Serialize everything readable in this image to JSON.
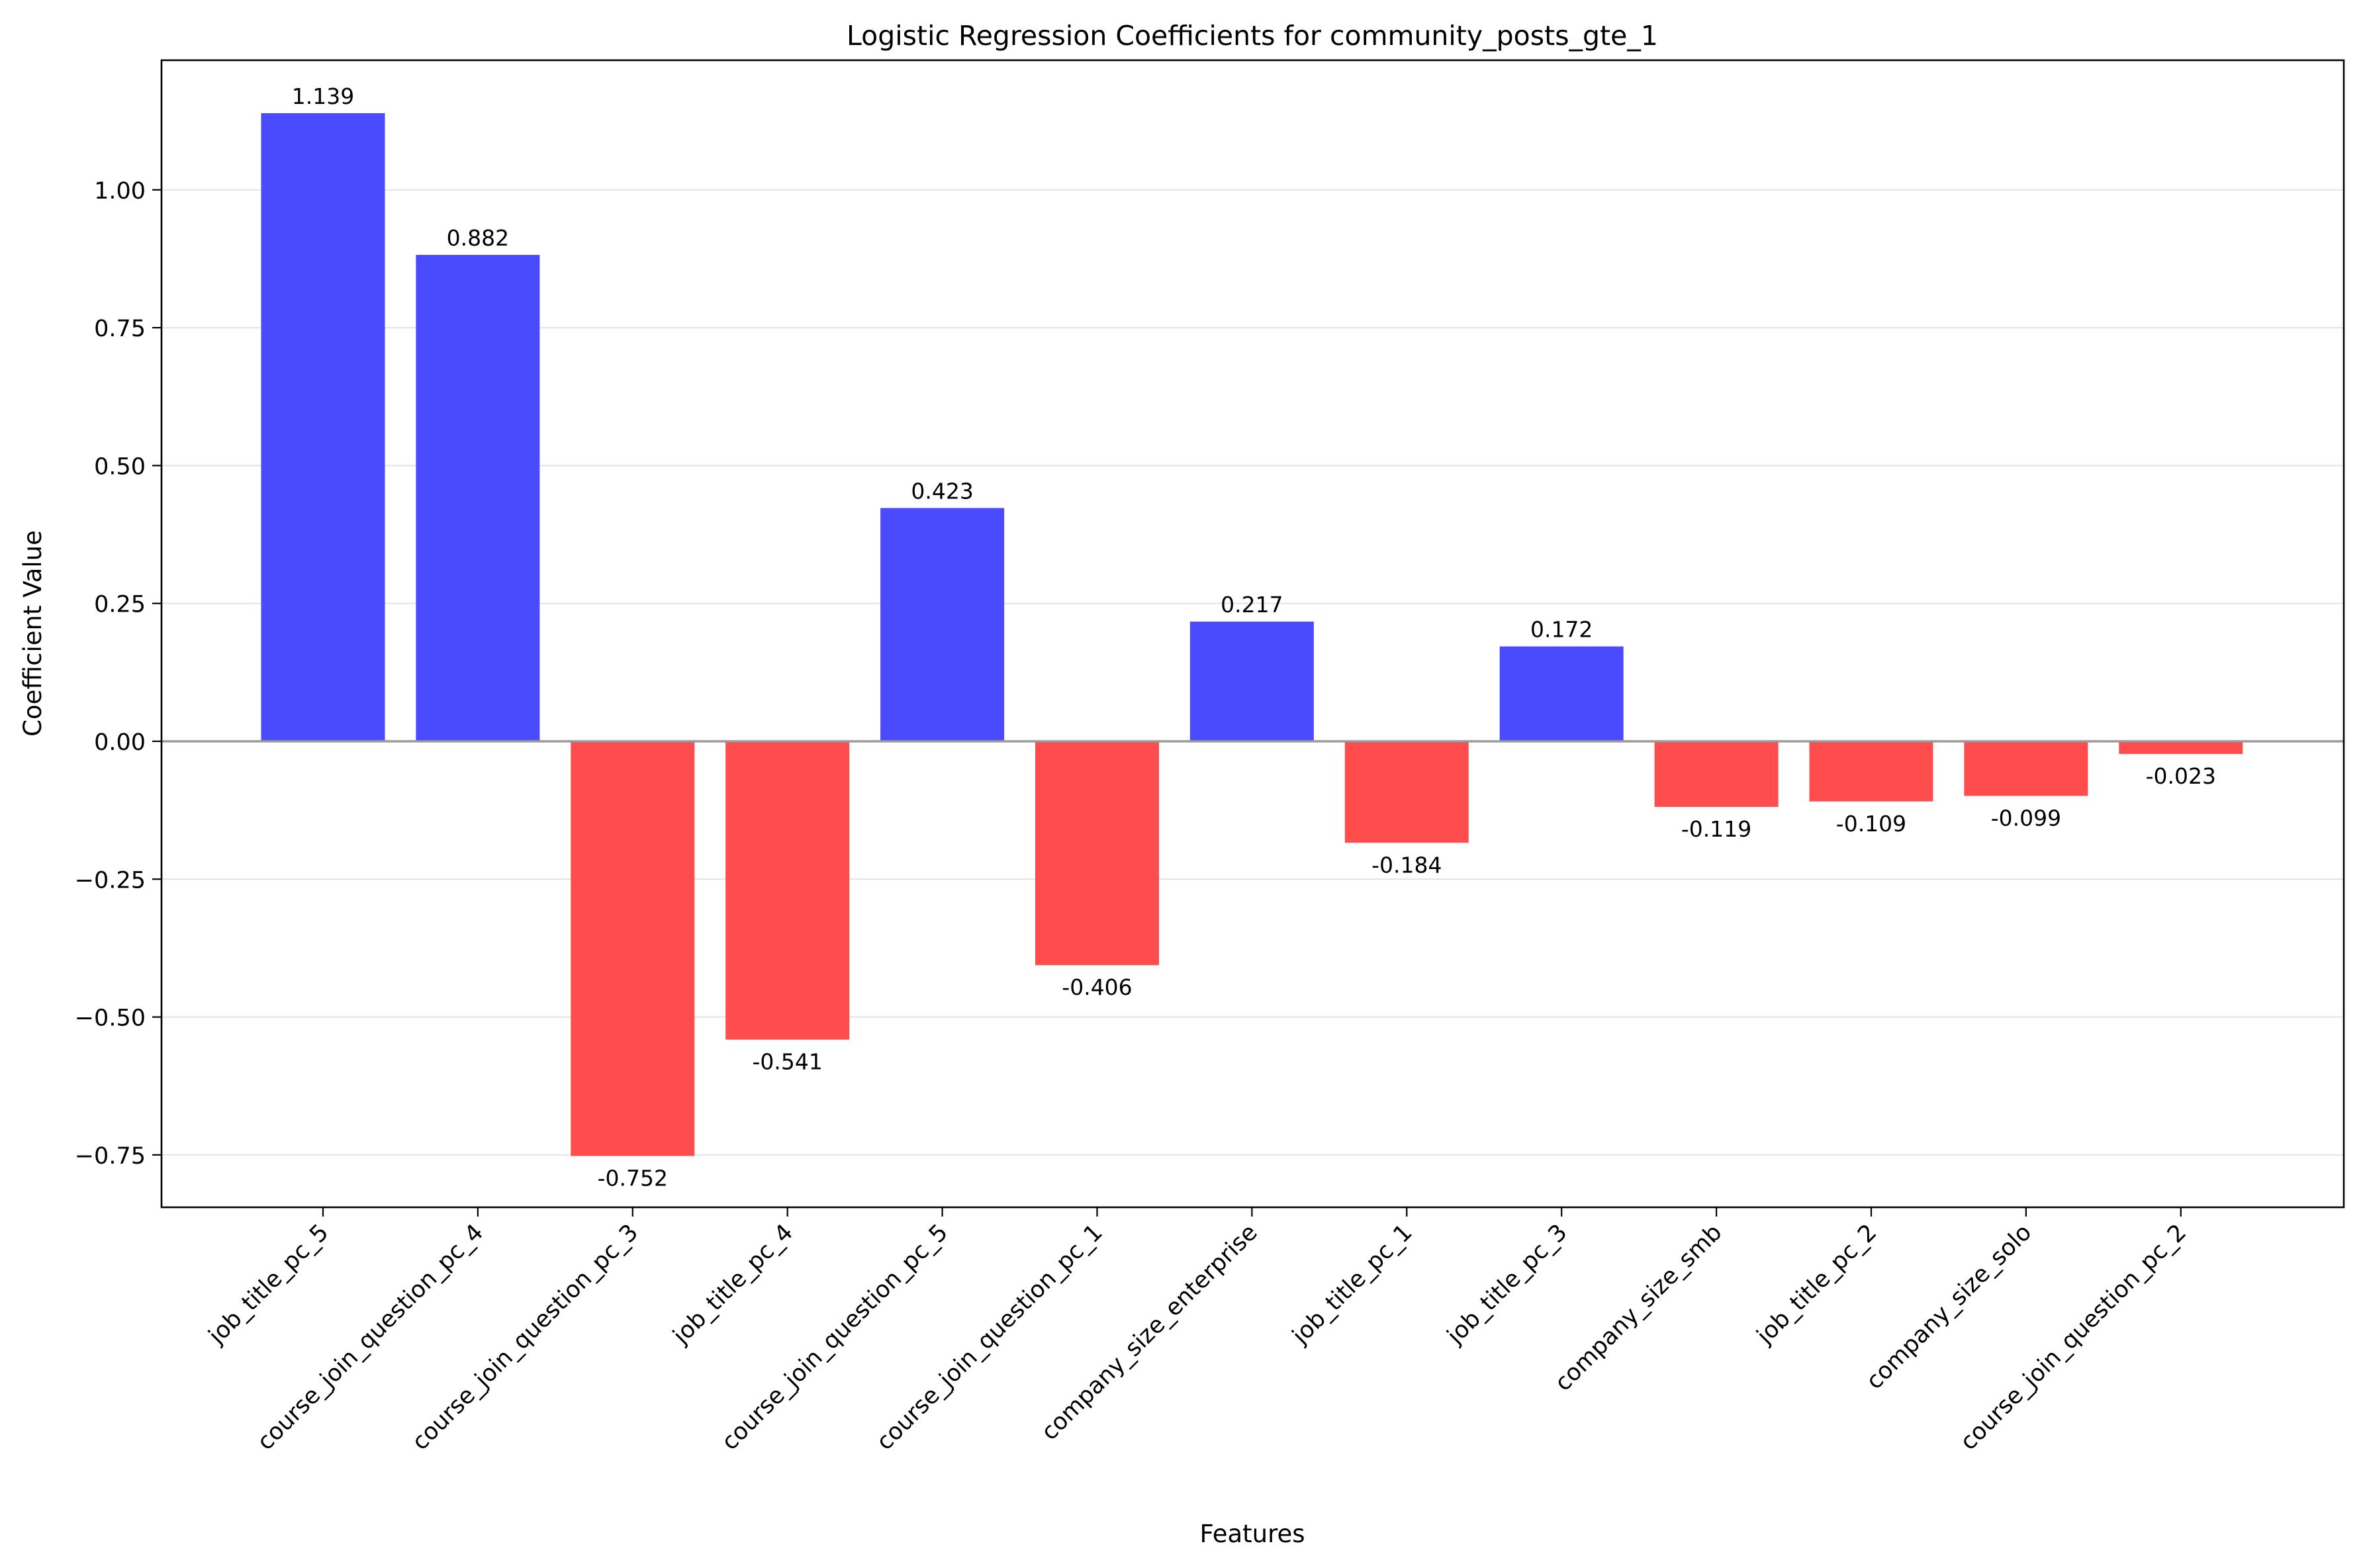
{
  "chart_data": {
    "type": "bar",
    "title": "Logistic Regression Coefficients for community_posts_gte_1",
    "xlabel": "Features",
    "ylabel": "Coefficient Value",
    "categories": [
      "job_title_pc_5",
      "course_join_question_pc_4",
      "course_join_question_pc_3",
      "job_title_pc_4",
      "course_join_question_pc_5",
      "course_join_question_pc_1",
      "company_size_enterprise",
      "job_title_pc_1",
      "job_title_pc_3",
      "company_size_smb",
      "job_title_pc_2",
      "company_size_solo",
      "course_join_question_pc_2"
    ],
    "values": [
      1.139,
      0.882,
      -0.752,
      -0.541,
      0.423,
      -0.406,
      0.217,
      -0.184,
      0.172,
      -0.119,
      -0.109,
      -0.099,
      -0.023
    ],
    "value_labels": [
      "1.139",
      "0.882",
      "-0.752",
      "-0.541",
      "0.423",
      "-0.406",
      "0.217",
      "-0.184",
      "0.172",
      "-0.119",
      "-0.109",
      "-0.099",
      "-0.023"
    ],
    "ylim": [
      -0.845,
      1.235
    ],
    "yticks": [
      -0.75,
      -0.5,
      -0.25,
      0.0,
      0.25,
      0.5,
      0.75,
      1.0
    ],
    "ytick_labels": [
      "−0.75",
      "−0.50",
      "−0.25",
      "0.00",
      "0.25",
      "0.50",
      "0.75",
      "1.00"
    ],
    "grid": "horizontal",
    "zero_line": true,
    "colors": {
      "positive": "#4a4aff",
      "negative": "#ff4d4d",
      "grid": "#e5e5e5",
      "zero_line": "#999999",
      "axes": "#000000"
    }
  }
}
